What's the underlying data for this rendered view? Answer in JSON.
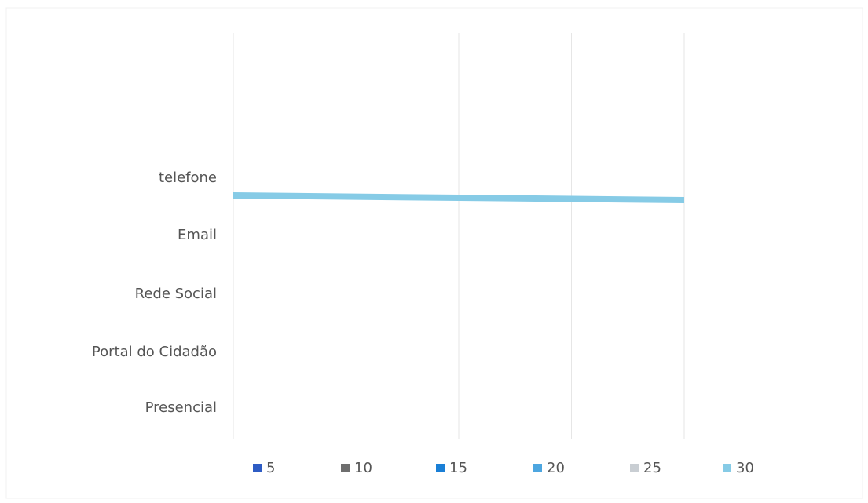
{
  "chart_data": {
    "type": "bar",
    "orientation": "horizontal",
    "categories": [
      "telefone",
      "Email",
      "Rede Social",
      "Portal do Cidadão",
      "Presencial"
    ],
    "xlim": [
      0,
      25
    ],
    "grid": true,
    "tick_labels_visible": false,
    "legend_position": "bottom",
    "series": [
      {
        "name": "5",
        "color": "#2e5cc4",
        "values": [
          null,
          null,
          null,
          null,
          null
        ]
      },
      {
        "name": "10",
        "color": "#6e6e6e",
        "values": [
          null,
          null,
          null,
          null,
          null
        ]
      },
      {
        "name": "15",
        "color": "#1a7fd6",
        "values": [
          null,
          null,
          null,
          null,
          null
        ]
      },
      {
        "name": "20",
        "color": "#4da6e0",
        "values": [
          null,
          null,
          null,
          null,
          null
        ]
      },
      {
        "name": "25",
        "color": "#c9ced3",
        "values": [
          null,
          null,
          null,
          null,
          null
        ]
      },
      {
        "name": "30",
        "color": "#86cbe6",
        "values": [
          20,
          null,
          null,
          null,
          null
        ]
      }
    ]
  }
}
